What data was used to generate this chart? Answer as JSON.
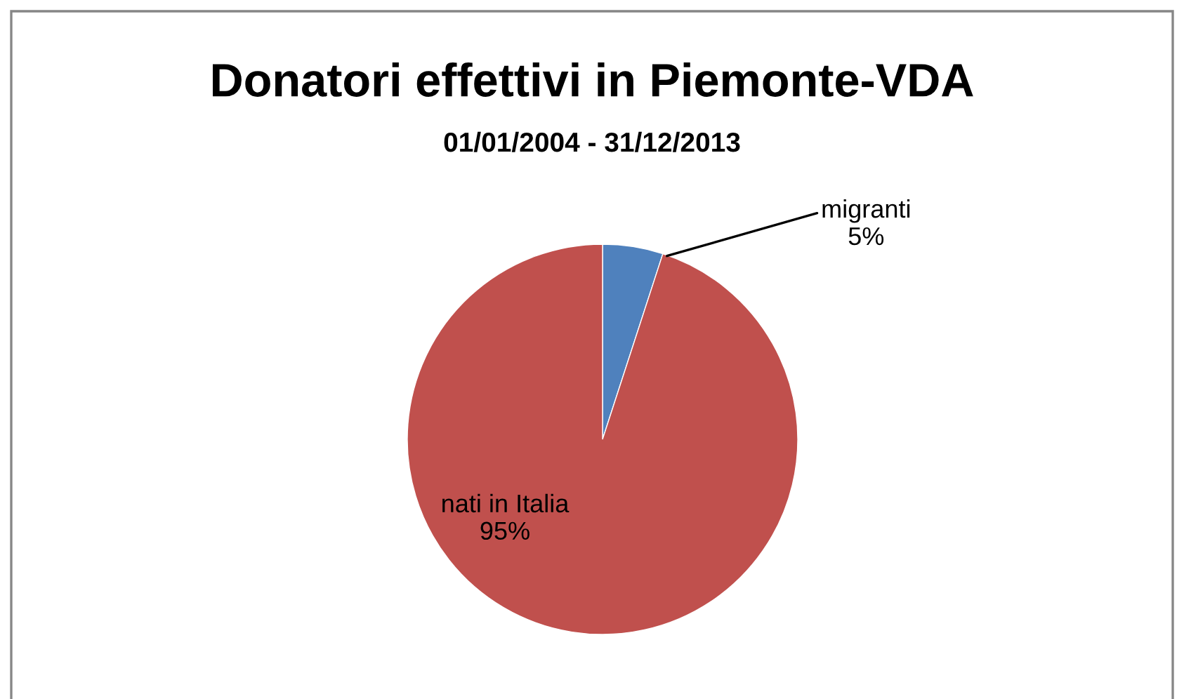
{
  "chart_data": {
    "type": "pie",
    "title": "Donatori effettivi in Piemonte-VDA",
    "subtitle": "01/01/2004 - 31/12/2013",
    "categories": [
      "migranti",
      "nati in Italia"
    ],
    "values": [
      5,
      95
    ],
    "colors": [
      "#4f81bd",
      "#c0504d"
    ],
    "value_labels": [
      "5%",
      "95%"
    ]
  }
}
